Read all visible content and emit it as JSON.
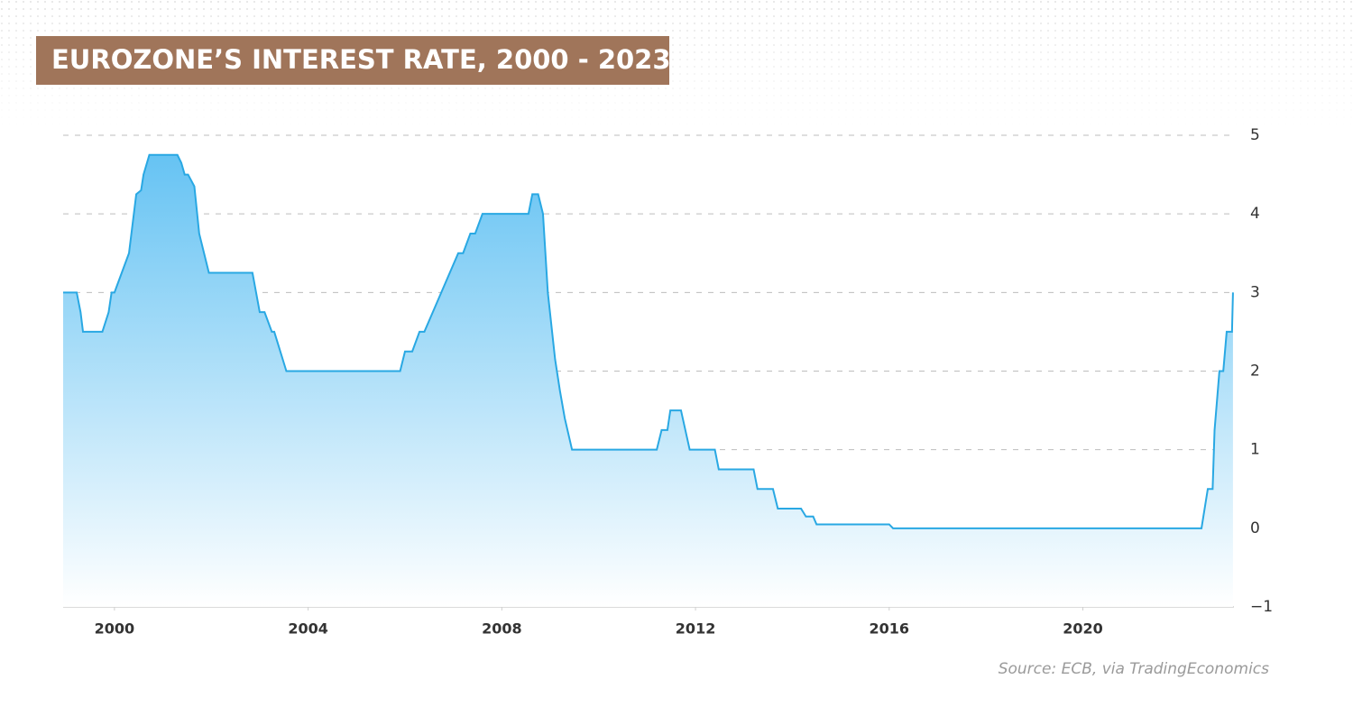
{
  "chart_data": {
    "type": "area",
    "title": "EUROZONE’S INTEREST RATE, 2000 - 2023",
    "source": "Source: ECB, via TradingEconomics",
    "color": "#29a8e3",
    "grid": true,
    "xlim": [
      1998.94,
      2023.12
    ],
    "xticks": [
      2000,
      2004,
      2008,
      2012,
      2016,
      2020
    ],
    "ylim": [
      -1,
      5
    ],
    "yticks": [
      {
        "value": -1,
        "label": "−1"
      },
      0,
      1,
      2,
      3,
      4,
      5
    ],
    "x": [
      1998.94,
      1999.22,
      1999.3,
      1999.35,
      1999.75,
      1999.88,
      1999.94,
      2000.0,
      2000.3,
      2000.35,
      2000.45,
      2000.55,
      2000.6,
      2000.72,
      2000.85,
      2001.3,
      2001.38,
      2001.45,
      2001.52,
      2001.65,
      2001.75,
      2001.85,
      2001.95,
      2002.85,
      2003.0,
      2003.1,
      2003.25,
      2003.3,
      2003.55,
      2005.9,
      2006.0,
      2006.15,
      2006.3,
      2006.4,
      2007.1,
      2007.2,
      2007.35,
      2007.45,
      2007.6,
      2008.55,
      2008.63,
      2008.75,
      2008.85,
      2008.95,
      2009.1,
      2009.2,
      2009.3,
      2009.45,
      2011.2,
      2011.3,
      2011.42,
      2011.48,
      2011.7,
      2011.88,
      2012.4,
      2012.48,
      2013.2,
      2013.28,
      2013.6,
      2013.7,
      2014.18,
      2014.28,
      2014.43,
      2014.5,
      2016.0,
      2016.08,
      2022.45,
      2022.58,
      2022.68,
      2022.72,
      2022.82,
      2022.9,
      2022.97,
      2023.08,
      2023.1
    ],
    "values": [
      3.0,
      3.0,
      2.75,
      2.5,
      2.5,
      2.75,
      3.0,
      3.0,
      3.5,
      3.75,
      4.25,
      4.3,
      4.5,
      4.75,
      4.75,
      4.75,
      4.65,
      4.5,
      4.5,
      4.35,
      3.75,
      3.5,
      3.25,
      3.25,
      2.75,
      2.75,
      2.5,
      2.5,
      2.0,
      2.0,
      2.25,
      2.25,
      2.5,
      2.5,
      3.5,
      3.5,
      3.75,
      3.75,
      4.0,
      4.0,
      4.25,
      4.25,
      4.0,
      3.0,
      2.15,
      1.75,
      1.4,
      1.0,
      1.0,
      1.25,
      1.25,
      1.5,
      1.5,
      1.0,
      1.0,
      0.75,
      0.75,
      0.5,
      0.5,
      0.25,
      0.25,
      0.15,
      0.15,
      0.05,
      0.05,
      0.0,
      0.0,
      0.5,
      0.5,
      1.25,
      2.0,
      2.0,
      2.5,
      2.5,
      3.0
    ]
  }
}
